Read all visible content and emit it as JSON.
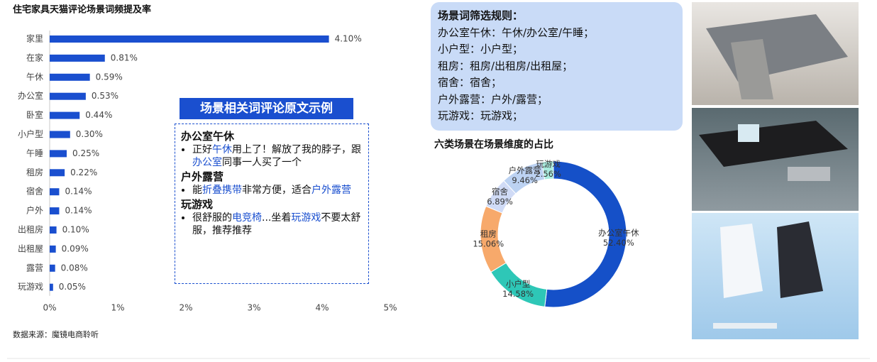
{
  "chart_data": [
    {
      "type": "bar",
      "orientation": "horizontal",
      "title": "住宅家具天猫评论场景词频提及率",
      "categories": [
        "家里",
        "在家",
        "午休",
        "办公室",
        "卧室",
        "小户型",
        "午睡",
        "租房",
        "宿舍",
        "户外",
        "出租房",
        "出租屋",
        "露营",
        "玩游戏"
      ],
      "values": [
        4.1,
        0.81,
        0.59,
        0.53,
        0.44,
        0.3,
        0.25,
        0.22,
        0.14,
        0.14,
        0.1,
        0.09,
        0.08,
        0.05
      ],
      "value_labels": [
        "4.10%",
        "0.81%",
        "0.59%",
        "0.53%",
        "0.44%",
        "0.30%",
        "0.25%",
        "0.22%",
        "0.14%",
        "0.14%",
        "0.10%",
        "0.09%",
        "0.08%",
        "0.05%"
      ],
      "color": "#1a4fcf",
      "xlim": [
        0,
        5
      ],
      "xticks": [
        {
          "value": 0,
          "label": "0%"
        },
        {
          "value": 1,
          "label": "1%"
        },
        {
          "value": 2,
          "label": "2%"
        },
        {
          "value": 3,
          "label": "3%"
        },
        {
          "value": 4,
          "label": "4%"
        },
        {
          "value": 5,
          "label": "5%"
        }
      ]
    },
    {
      "type": "donut",
      "title": "六类场景在场景维度的占比",
      "categories": [
        "办公室午休",
        "小户型",
        "租房",
        "宿舍",
        "户外露营",
        "玩游戏"
      ],
      "values": [
        52.4,
        14.58,
        15.06,
        6.89,
        9.46,
        2.56
      ],
      "value_labels": [
        "52.40%",
        "14.58%",
        "15.06%",
        "6.89%",
        "9.46%",
        "2.56%"
      ],
      "colors": [
        "#1550c8",
        "#2ec7b7",
        "#f7a96b",
        "#d0dbf6",
        "#bcd2f2",
        "#a9ecdf"
      ]
    }
  ],
  "source": "数据来源：魔镜电商聆听",
  "examples": {
    "title": "场景相关词评论原文示例",
    "items": [
      {
        "heading": "办公室午休",
        "segments": [
          "正好",
          "午休",
          "用上了！解放了我的脖子，跟",
          "办公室",
          "同事一人买了一个"
        ]
      },
      {
        "heading": "户外露营",
        "segments": [
          "能",
          "折叠携带",
          "非常方便，适合",
          "户外露营"
        ]
      },
      {
        "heading": "玩游戏",
        "segments": [
          "很舒服的",
          "电竞椅",
          "...坐着",
          "玩游戏",
          "不要太舒服，推荐推荐"
        ]
      }
    ]
  },
  "rules": {
    "title": "场景词筛选规则：",
    "lines": [
      "办公室午休：午休/办公室/午睡；",
      "小户型：小户型；",
      "租房：租房/出租房/出租屋；",
      "宿舍：宿舍；",
      "户外露营：户外/露营；",
      "玩游戏：玩游戏；"
    ]
  }
}
